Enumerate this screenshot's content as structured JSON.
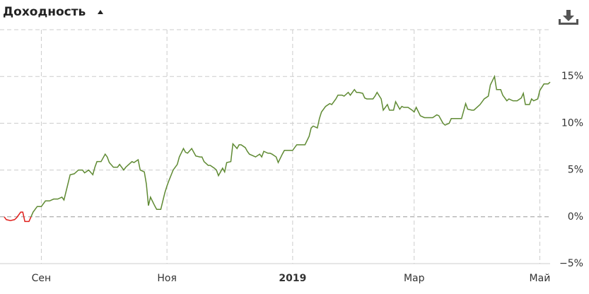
{
  "chart_data": {
    "type": "line",
    "title": "Доходность",
    "xlim": [
      0,
      265
    ],
    "xticks": [
      {
        "value": 18,
        "label": "Сен"
      },
      {
        "value": 79,
        "label": "Ноя"
      },
      {
        "value": 140,
        "label": "2019"
      },
      {
        "value": 199,
        "label": "Мар"
      },
      {
        "value": 260,
        "label": "Май"
      }
    ],
    "ylim": [
      -5,
      20
    ],
    "yticks": [
      {
        "value": -5,
        "label": "−5%"
      },
      {
        "value": 0,
        "label": "0%"
      },
      {
        "value": 5,
        "label": "5%"
      },
      {
        "value": 10,
        "label": "10%"
      },
      {
        "value": 15,
        "label": "15%"
      }
    ],
    "grid": true,
    "series": [
      {
        "color": "#e0201c",
        "x": [
          0,
          1,
          3,
          5,
          6,
          8,
          9,
          10,
          12,
          13
        ],
        "values": [
          0,
          -0.3,
          -0.4,
          -0.3,
          -0.1,
          0.5,
          0.5,
          -0.5,
          -0.5,
          0.0
        ]
      },
      {
        "color": "#5f8a33",
        "x": [
          13,
          14,
          16,
          18,
          20,
          22,
          24,
          26,
          28,
          29,
          31,
          32,
          34,
          36,
          38,
          39,
          41,
          43,
          44,
          45,
          47,
          49,
          50,
          51,
          53,
          55,
          56,
          58,
          59,
          60,
          62,
          63,
          65,
          66,
          68,
          69,
          70,
          71,
          73,
          74,
          76,
          78,
          79,
          80,
          82,
          84,
          85,
          87,
          88,
          89,
          91,
          93,
          95,
          96,
          97,
          99,
          100,
          102,
          103,
          104,
          106,
          107,
          108,
          110,
          111,
          113,
          114,
          115,
          117,
          118,
          119,
          121,
          122,
          124,
          125,
          126,
          128,
          129,
          130,
          132,
          133,
          135,
          136,
          138,
          140,
          142,
          146,
          148,
          149,
          150,
          152,
          153,
          154,
          156,
          158,
          159,
          161,
          162,
          164,
          165,
          167,
          168,
          170,
          171,
          172,
          174,
          175,
          176,
          179,
          180,
          181,
          183,
          184,
          186,
          187,
          189,
          190,
          192,
          193,
          194,
          196,
          198,
          199,
          200,
          202,
          204,
          206,
          208,
          210,
          211,
          213,
          214,
          216,
          217,
          219,
          221,
          222,
          224,
          225,
          227,
          228,
          230,
          231,
          233,
          235,
          236,
          238,
          239,
          241,
          242,
          244,
          245,
          247,
          249,
          251,
          252,
          253,
          255,
          256,
          257,
          259,
          260,
          262,
          264,
          265
        ],
        "values": [
          0.0,
          0.5,
          1.1,
          1.1,
          1.7,
          1.7,
          1.9,
          1.9,
          2.1,
          1.8,
          3.6,
          4.5,
          4.6,
          5.0,
          5.0,
          4.7,
          5.0,
          4.5,
          5.3,
          5.9,
          5.9,
          6.7,
          6.4,
          5.8,
          5.3,
          5.3,
          5.6,
          5.0,
          5.3,
          5.5,
          5.9,
          5.8,
          6.1,
          5.0,
          4.8,
          3.5,
          1.2,
          2.1,
          1.2,
          0.8,
          0.8,
          2.6,
          3.3,
          3.9,
          5.0,
          5.6,
          6.4,
          7.3,
          6.9,
          6.8,
          7.3,
          6.5,
          6.4,
          6.4,
          5.9,
          5.5,
          5.5,
          5.2,
          5.0,
          4.4,
          5.2,
          4.8,
          5.8,
          5.9,
          7.8,
          7.3,
          7.7,
          7.7,
          7.4,
          7.0,
          6.7,
          6.5,
          6.4,
          6.7,
          6.4,
          7.0,
          6.8,
          6.8,
          6.7,
          6.4,
          5.8,
          6.7,
          7.1,
          7.1,
          7.1,
          7.7,
          7.7,
          8.6,
          9.5,
          9.7,
          9.5,
          10.5,
          11.2,
          11.8,
          12.1,
          12.0,
          12.6,
          13.0,
          13.0,
          12.9,
          13.3,
          13.0,
          13.6,
          13.3,
          13.3,
          13.2,
          12.7,
          12.6,
          12.6,
          12.9,
          13.3,
          12.6,
          11.4,
          12.0,
          11.4,
          11.4,
          12.3,
          11.5,
          11.8,
          11.7,
          11.7,
          11.4,
          11.2,
          11.7,
          10.8,
          10.6,
          10.6,
          10.6,
          10.9,
          10.8,
          10.0,
          9.8,
          10.0,
          10.5,
          10.5,
          10.5,
          10.5,
          12.1,
          11.5,
          11.4,
          11.4,
          11.8,
          12.0,
          12.6,
          12.9,
          14.1,
          15.0,
          13.6,
          13.6,
          13.0,
          12.4,
          12.6,
          12.4,
          12.4,
          12.7,
          13.2,
          12.0,
          12.0,
          12.6,
          12.4,
          12.6,
          13.5,
          14.2,
          14.2,
          14.4
        ]
      }
    ]
  }
}
